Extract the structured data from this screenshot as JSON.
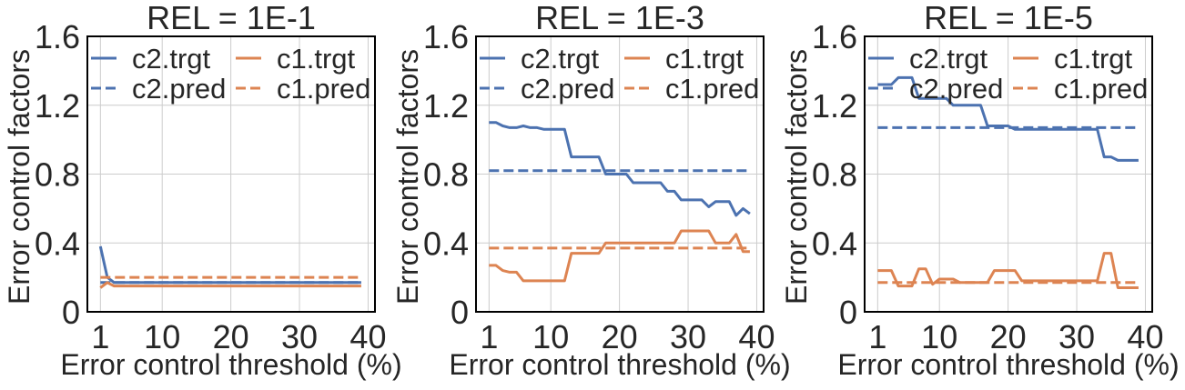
{
  "chart_data": [
    {
      "type": "line",
      "title": "REL = 1E-1",
      "xlabel": "Error control threshold (%)",
      "ylabel": "Error control factors",
      "xlim": [
        -0.9,
        41
      ],
      "ylim": [
        0,
        1.6
      ],
      "xticks": [
        1,
        10,
        20,
        30,
        40
      ],
      "yticks": [
        0,
        0.4,
        0.8,
        1.2,
        1.6
      ],
      "ytick_labels": [
        "0",
        "0.4",
        "0.8",
        "1.2",
        "1.6"
      ],
      "grid": true,
      "legend_position": "top",
      "series": [
        {
          "name": "c2.trgt",
          "color": "#4c72b0",
          "dash": "solid",
          "x": [
            1,
            2,
            3,
            39
          ],
          "values": [
            0.38,
            0.2,
            0.17,
            0.17
          ]
        },
        {
          "name": "c2.pred",
          "color": "#4c72b0",
          "dash": "dashed",
          "x": [
            1,
            39
          ],
          "values": [
            0.17,
            0.17
          ]
        },
        {
          "name": "c1.trgt",
          "color": "#dd8452",
          "dash": "solid",
          "x": [
            1,
            2,
            3,
            39
          ],
          "values": [
            0.14,
            0.17,
            0.15,
            0.15
          ]
        },
        {
          "name": "c1.pred",
          "color": "#dd8452",
          "dash": "dashed",
          "x": [
            1,
            39
          ],
          "values": [
            0.2,
            0.2
          ]
        }
      ]
    },
    {
      "type": "line",
      "title": "REL = 1E-3",
      "xlabel": "Error control threshold (%)",
      "ylabel": "Error control factors",
      "xlim": [
        -0.9,
        41
      ],
      "ylim": [
        0,
        1.6
      ],
      "xticks": [
        1,
        10,
        20,
        30,
        40
      ],
      "yticks": [
        0,
        0.4,
        0.8,
        1.2,
        1.6
      ],
      "ytick_labels": [
        "0",
        "0.4",
        "0.8",
        "1.2",
        "1.6"
      ],
      "grid": true,
      "legend_position": "top",
      "series": [
        {
          "name": "c2.trgt",
          "color": "#4c72b0",
          "dash": "solid",
          "x": [
            1,
            2,
            3,
            4,
            5,
            6,
            7,
            8,
            9,
            10,
            11,
            12,
            13,
            14,
            15,
            16,
            17,
            18,
            19,
            20,
            21,
            22,
            23,
            24,
            25,
            26,
            27,
            28,
            29,
            30,
            31,
            32,
            33,
            34,
            35,
            36,
            37,
            38,
            39
          ],
          "values": [
            1.1,
            1.1,
            1.08,
            1.07,
            1.07,
            1.08,
            1.07,
            1.07,
            1.06,
            1.06,
            1.06,
            1.06,
            0.9,
            0.9,
            0.9,
            0.9,
            0.9,
            0.8,
            0.8,
            0.8,
            0.8,
            0.75,
            0.75,
            0.75,
            0.75,
            0.75,
            0.7,
            0.7,
            0.65,
            0.65,
            0.65,
            0.65,
            0.61,
            0.64,
            0.64,
            0.64,
            0.56,
            0.6,
            0.57
          ]
        },
        {
          "name": "c2.pred",
          "color": "#4c72b0",
          "dash": "dashed",
          "x": [
            1,
            39
          ],
          "values": [
            0.82,
            0.82
          ]
        },
        {
          "name": "c1.trgt",
          "color": "#dd8452",
          "dash": "solid",
          "x": [
            1,
            2,
            3,
            4,
            5,
            6,
            7,
            8,
            9,
            10,
            11,
            12,
            13,
            14,
            15,
            16,
            17,
            18,
            19,
            20,
            21,
            22,
            23,
            24,
            25,
            26,
            27,
            28,
            29,
            30,
            31,
            32,
            33,
            34,
            35,
            36,
            37,
            38,
            39
          ],
          "values": [
            0.27,
            0.27,
            0.24,
            0.23,
            0.23,
            0.18,
            0.18,
            0.18,
            0.18,
            0.18,
            0.18,
            0.18,
            0.34,
            0.34,
            0.34,
            0.34,
            0.34,
            0.4,
            0.4,
            0.4,
            0.4,
            0.4,
            0.4,
            0.4,
            0.4,
            0.4,
            0.4,
            0.4,
            0.47,
            0.47,
            0.47,
            0.47,
            0.47,
            0.4,
            0.4,
            0.4,
            0.45,
            0.35,
            0.35
          ]
        },
        {
          "name": "c1.pred",
          "color": "#dd8452",
          "dash": "dashed",
          "x": [
            1,
            39
          ],
          "values": [
            0.37,
            0.37
          ]
        }
      ]
    },
    {
      "type": "line",
      "title": "REL = 1E-5",
      "xlabel": "Error control threshold (%)",
      "ylabel": "Error control factors",
      "xlim": [
        -0.9,
        41
      ],
      "ylim": [
        0,
        1.6
      ],
      "xticks": [
        1,
        10,
        20,
        30,
        40
      ],
      "yticks": [
        0,
        0.4,
        0.8,
        1.2,
        1.6
      ],
      "ytick_labels": [
        "0",
        "0.4",
        "0.8",
        "1.2",
        "1.6"
      ],
      "grid": true,
      "legend_position": "top",
      "series": [
        {
          "name": "c2.trgt",
          "color": "#4c72b0",
          "dash": "solid",
          "x": [
            1,
            2,
            3,
            4,
            5,
            6,
            7,
            8,
            9,
            10,
            11,
            12,
            13,
            14,
            15,
            16,
            17,
            18,
            19,
            20,
            21,
            22,
            23,
            24,
            25,
            26,
            27,
            28,
            29,
            30,
            31,
            32,
            33,
            34,
            35,
            36,
            37,
            38,
            39
          ],
          "values": [
            1.32,
            1.32,
            1.32,
            1.36,
            1.36,
            1.36,
            1.24,
            1.24,
            1.24,
            1.24,
            1.24,
            1.2,
            1.2,
            1.2,
            1.2,
            1.2,
            1.08,
            1.08,
            1.08,
            1.08,
            1.06,
            1.06,
            1.06,
            1.06,
            1.06,
            1.06,
            1.06,
            1.06,
            1.06,
            1.06,
            1.06,
            1.06,
            1.06,
            0.9,
            0.9,
            0.88,
            0.88,
            0.88,
            0.88
          ]
        },
        {
          "name": "c2.pred",
          "color": "#4c72b0",
          "dash": "dashed",
          "x": [
            1,
            39
          ],
          "values": [
            1.07,
            1.07
          ]
        },
        {
          "name": "c1.trgt",
          "color": "#dd8452",
          "dash": "solid",
          "x": [
            1,
            2,
            3,
            4,
            5,
            6,
            7,
            8,
            9,
            10,
            11,
            12,
            13,
            14,
            15,
            16,
            17,
            18,
            19,
            20,
            21,
            22,
            23,
            24,
            25,
            26,
            27,
            28,
            29,
            30,
            31,
            32,
            33,
            34,
            35,
            36,
            37,
            38,
            39
          ],
          "values": [
            0.24,
            0.24,
            0.24,
            0.15,
            0.15,
            0.15,
            0.25,
            0.25,
            0.16,
            0.19,
            0.19,
            0.19,
            0.17,
            0.17,
            0.17,
            0.17,
            0.17,
            0.24,
            0.24,
            0.24,
            0.24,
            0.18,
            0.18,
            0.18,
            0.18,
            0.18,
            0.18,
            0.18,
            0.18,
            0.18,
            0.18,
            0.18,
            0.18,
            0.34,
            0.34,
            0.14,
            0.14,
            0.14,
            0.14
          ]
        },
        {
          "name": "c1.pred",
          "color": "#dd8452",
          "dash": "dashed",
          "x": [
            1,
            39
          ],
          "values": [
            0.17,
            0.17
          ]
        }
      ]
    }
  ]
}
